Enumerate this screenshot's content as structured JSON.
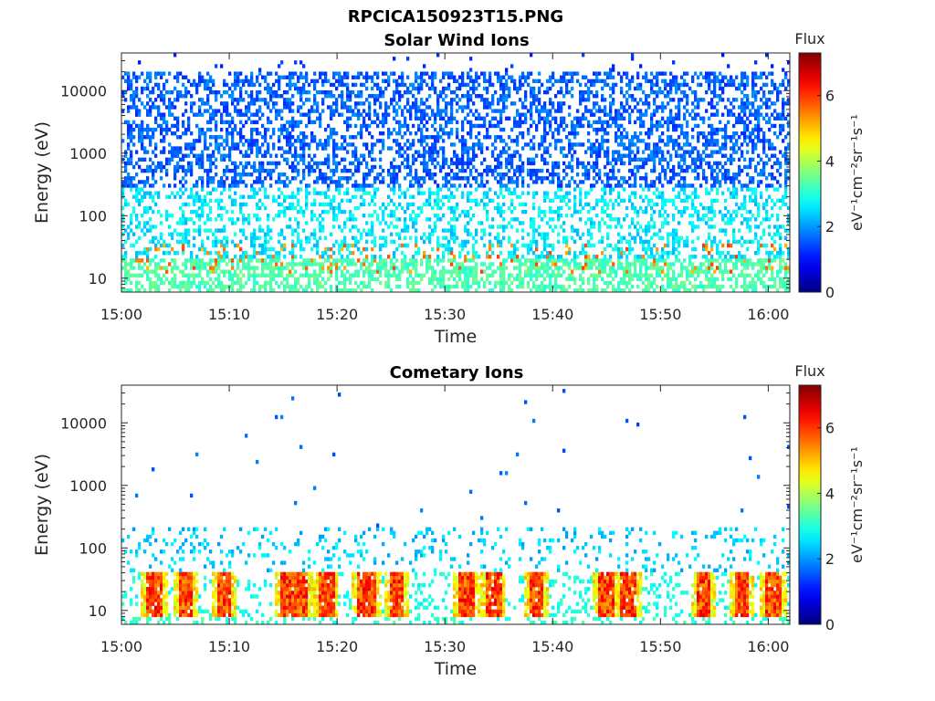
{
  "figure_title": "RPCICA150923T15.PNG",
  "chart_data": [
    {
      "type": "heatmap",
      "title": "Solar Wind Ions",
      "xlabel": "Time",
      "ylabel": "Energy (eV)",
      "x_ticks": [
        "15:00",
        "15:10",
        "15:20",
        "15:30",
        "15:40",
        "15:50",
        "16:00"
      ],
      "x_range": [
        "15:00",
        "16:02"
      ],
      "y_ticks": [
        "10",
        "100",
        "1000",
        "10000"
      ],
      "y_scale": "log",
      "y_range_ev": [
        6,
        40000
      ],
      "colorbar": {
        "title": "Flux",
        "label": "eV⁻¹cm⁻²sr⁻¹s⁻¹",
        "ticks": [
          "0",
          "2",
          "4",
          "6"
        ],
        "range": [
          0,
          7.3
        ],
        "colormap": "jet"
      },
      "flux_scale": "log",
      "description": "Dense scattered counts across all energies: flux ~1-2 (blue) at 300-20000 eV, ~2.5-3.5 (cyan/green) at 20-300 eV, with recurring bursts ~5-6 (orange) near 15-30 eV."
    },
    {
      "type": "heatmap",
      "title": "Cometary Ions",
      "xlabel": "Time",
      "ylabel": "Energy (eV)",
      "x_ticks": [
        "15:00",
        "15:10",
        "15:20",
        "15:30",
        "15:40",
        "15:50",
        "16:00"
      ],
      "x_range": [
        "15:00",
        "16:02"
      ],
      "y_ticks": [
        "10",
        "100",
        "1000",
        "10000"
      ],
      "y_scale": "log",
      "y_range_ev": [
        6,
        40000
      ],
      "colorbar": {
        "title": "Flux",
        "label": "eV⁻¹cm⁻²sr⁻¹s⁻¹",
        "ticks": [
          "0",
          "2",
          "4",
          "6"
        ],
        "range": [
          0,
          7.3
        ],
        "colormap": "jet"
      },
      "flux_scale": "log",
      "description": "Sparse counts above 300 eV; band of flux ~2-3 at 40-200 eV; intense bursts up to flux ~6.5 (red) at 8-40 eV.",
      "burst_times": [
        "15:03",
        "15:06",
        "15:09:30",
        "15:15:30",
        "15:16:30",
        "15:19",
        "15:22:30",
        "15:23",
        "15:25:30",
        "15:32",
        "15:34:30",
        "15:38:30",
        "15:45",
        "15:47",
        "15:54",
        "15:57:30",
        "16:00:30"
      ]
    }
  ]
}
